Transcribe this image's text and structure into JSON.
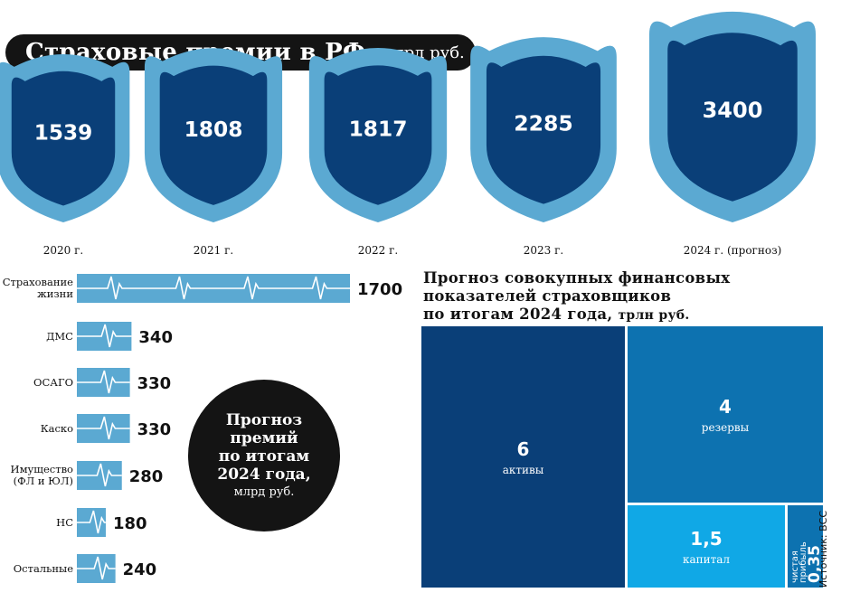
{
  "title": {
    "main": "Страховые премии в РФ,",
    "unit": "млрд руб."
  },
  "colors": {
    "dark_blue": "#0a3f78",
    "light_blue": "#5ba9d2",
    "mid_blue": "#0d72b0",
    "bright_blue": "#10a8e6",
    "black": "#141414"
  },
  "chart_data": [
    {
      "type": "bar",
      "title": "Страховые премии в РФ, млрд руб.",
      "categories": [
        "2020 г.",
        "2021 г.",
        "2022 г.",
        "2023 г.",
        "2024 г. (прогноз)"
      ],
      "values": [
        1539,
        1808,
        1817,
        2285,
        3400
      ],
      "value_labels": [
        "1539",
        "1808",
        "1817",
        "2285",
        "3400"
      ]
    },
    {
      "type": "bar",
      "title": "Прогноз премий по итогам 2024 года, млрд руб.",
      "categories": [
        "Страхование жизни",
        "ДМС",
        "ОСАГО",
        "Каско",
        "Имущество (ФЛ и ЮЛ)",
        "НС",
        "Остальные"
      ],
      "category_lines": [
        [
          "Страхование",
          "жизни"
        ],
        [
          "ДМС"
        ],
        [
          "ОСАГО"
        ],
        [
          "Каско"
        ],
        [
          "Имущество",
          "(ФЛ и ЮЛ)"
        ],
        [
          "НС"
        ],
        [
          "Остальные"
        ]
      ],
      "values": [
        1700,
        340,
        330,
        330,
        280,
        180,
        240
      ],
      "value_labels": [
        "1700",
        "340",
        "330",
        "330",
        "280",
        "180",
        "240"
      ]
    },
    {
      "type": "treemap",
      "title": "Прогноз совокупных финансовых показателей страховщиков по итогам 2024 года, трлн руб.",
      "categories": [
        "активы",
        "резервы",
        "капитал",
        "чистая прибыль"
      ],
      "values": [
        6,
        4,
        1.5,
        0.35
      ],
      "value_labels": [
        "6",
        "4",
        "1,5",
        "0,35"
      ]
    }
  ],
  "circle": {
    "lines": [
      "Прогноз",
      "премий",
      "по итогам",
      "2024 года,"
    ],
    "unit": "млрд руб."
  },
  "treemap_title": {
    "lines": [
      "Прогноз совокупных финансовых",
      "показателей страховщиков"
    ],
    "last": "по итогам 2024 года,",
    "unit": "трлн руб."
  },
  "profit_label": [
    "чистая",
    "прибыль"
  ],
  "source": "Источник: ВСС"
}
